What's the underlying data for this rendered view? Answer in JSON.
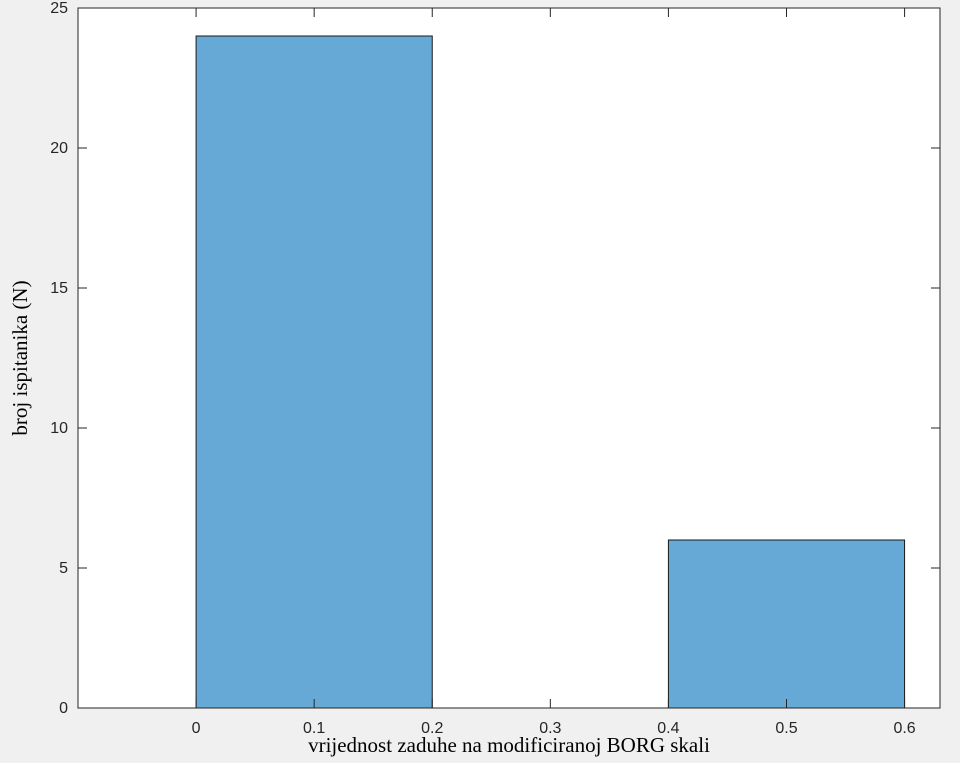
{
  "chart_data": {
    "type": "bar",
    "title": "",
    "xlabel": "vrijednost zaduhe na modificiranoj BORG skali",
    "ylabel": "broj ispitanika (N)",
    "xlim": [
      -0.1,
      0.63
    ],
    "ylim": [
      0,
      25
    ],
    "xticks": [
      0,
      0.1,
      0.2,
      0.3,
      0.4,
      0.5,
      0.6
    ],
    "xtick_labels": [
      "0",
      "0.1",
      "0.2",
      "0.3",
      "0.4",
      "0.5",
      "0.6"
    ],
    "yticks": [
      0,
      5,
      10,
      15,
      20,
      25
    ],
    "ytick_labels": [
      "0",
      "5",
      "10",
      "15",
      "20",
      "25"
    ],
    "bins": [
      {
        "from": 0.0,
        "to": 0.2,
        "value": 24
      },
      {
        "from": 0.2,
        "to": 0.4,
        "value": 0
      },
      {
        "from": 0.4,
        "to": 0.6,
        "value": 6
      }
    ],
    "grid": false,
    "legend": "none",
    "colors": {
      "figure_bg": "#f0f0f0",
      "axes_bg": "#ffffff",
      "bar_fill": "#66a9d7",
      "bar_edge": "#1a1a1a",
      "axis": "#262626"
    }
  }
}
